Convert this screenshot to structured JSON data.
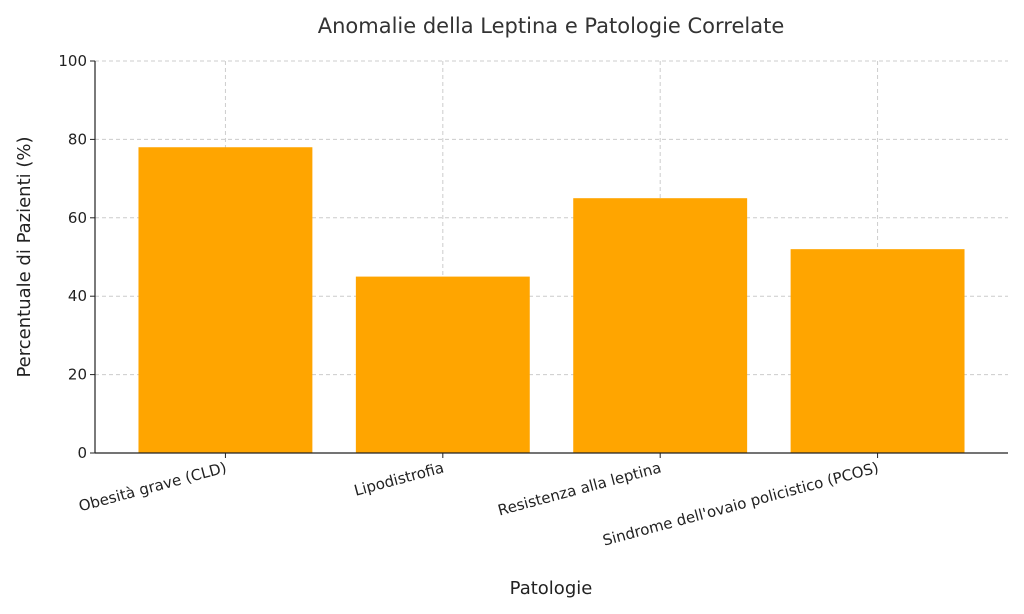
{
  "chart_data": {
    "type": "bar",
    "title": "Anomalie della Leptina e Patologie Correlate",
    "xlabel": "Patologie",
    "ylabel": "Percentuale di Pazienti (%)",
    "categories": [
      "Obesità grave (CLD)",
      "Lipodistrofia",
      "Resistenza alla leptina",
      "Sindrome dell'ovaio policistico (PCOS)"
    ],
    "values": [
      78,
      45,
      65,
      52
    ],
    "ylim": [
      0,
      100
    ],
    "yticks": [
      0,
      20,
      40,
      60,
      80,
      100
    ],
    "grid": true,
    "bar_color": "#FFA500"
  }
}
